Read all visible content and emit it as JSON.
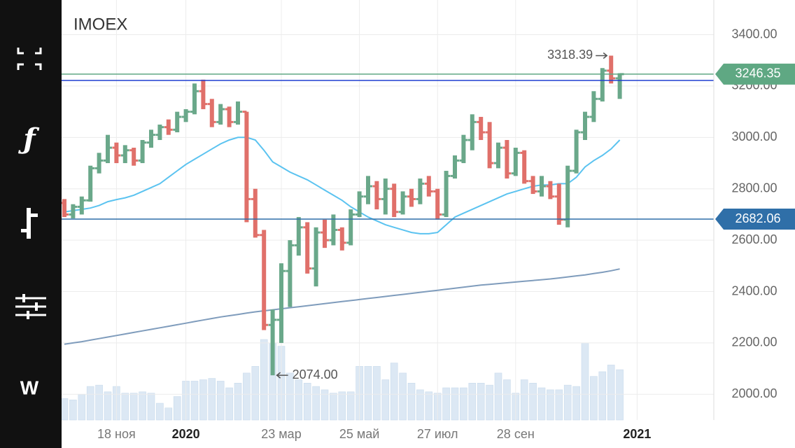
{
  "toolbar": [
    "ƒ",
    "W"
  ],
  "chart_data": {
    "type": "ohlc",
    "title": "IMOEX",
    "categories": [
      null,
      null,
      null,
      null,
      null,
      null,
      "18 ноя",
      null,
      null,
      null,
      null,
      null,
      null,
      null,
      "2020",
      null,
      null,
      null,
      null,
      null,
      null,
      null,
      null,
      null,
      null,
      "23 мар",
      null,
      null,
      null,
      null,
      null,
      null,
      null,
      null,
      "25 май",
      null,
      null,
      null,
      null,
      null,
      null,
      null,
      null,
      "27 июл",
      null,
      null,
      null,
      null,
      null,
      null,
      null,
      null,
      "28 сен",
      null,
      null,
      null,
      null,
      null,
      null,
      null,
      null,
      null,
      null,
      null,
      null,
      null,
      "2021",
      null,
      null,
      null,
      null,
      null,
      null,
      null,
      null
    ],
    "ohlc": [
      [
        2745,
        2760,
        2690,
        2700
      ],
      [
        2700,
        2740,
        2685,
        2730
      ],
      [
        2730,
        2770,
        2700,
        2755
      ],
      [
        2755,
        2890,
        2750,
        2880
      ],
      [
        2880,
        2940,
        2860,
        2910
      ],
      [
        2910,
        3010,
        2900,
        2960
      ],
      [
        2960,
        2980,
        2900,
        2930
      ],
      [
        2930,
        2970,
        2900,
        2950
      ],
      [
        2950,
        2960,
        2890,
        2910
      ],
      [
        2910,
        2990,
        2900,
        2980
      ],
      [
        2980,
        3030,
        2960,
        3010
      ],
      [
        3010,
        3050,
        2990,
        3040
      ],
      [
        3040,
        3070,
        3010,
        3030
      ],
      [
        3030,
        3100,
        3020,
        3080
      ],
      [
        3080,
        3110,
        3060,
        3100
      ],
      [
        3100,
        3210,
        3090,
        3180
      ],
      [
        3180,
        3225,
        3110,
        3130
      ],
      [
        3130,
        3150,
        3040,
        3060
      ],
      [
        3060,
        3130,
        3050,
        3110
      ],
      [
        3110,
        3120,
        3040,
        3060
      ],
      [
        3060,
        3140,
        3050,
        3100
      ],
      [
        3100,
        3100,
        2670,
        2760
      ],
      [
        2760,
        2800,
        2610,
        2620
      ],
      [
        2620,
        2640,
        2250,
        2270
      ],
      [
        2270,
        2330,
        2074,
        2290
      ],
      [
        2290,
        2510,
        2200,
        2480
      ],
      [
        2480,
        2600,
        2340,
        2580
      ],
      [
        2580,
        2690,
        2540,
        2650
      ],
      [
        2650,
        2670,
        2470,
        2490
      ],
      [
        2490,
        2650,
        2420,
        2630
      ],
      [
        2630,
        2680,
        2570,
        2600
      ],
      [
        2600,
        2700,
        2580,
        2640
      ],
      [
        2640,
        2650,
        2560,
        2590
      ],
      [
        2590,
        2720,
        2580,
        2700
      ],
      [
        2700,
        2790,
        2690,
        2770
      ],
      [
        2770,
        2850,
        2740,
        2810
      ],
      [
        2810,
        2830,
        2720,
        2760
      ],
      [
        2760,
        2840,
        2700,
        2800
      ],
      [
        2800,
        2820,
        2690,
        2710
      ],
      [
        2710,
        2790,
        2700,
        2770
      ],
      [
        2770,
        2800,
        2730,
        2760
      ],
      [
        2760,
        2840,
        2740,
        2820
      ],
      [
        2820,
        2850,
        2770,
        2790
      ],
      [
        2790,
        2800,
        2680,
        2700
      ],
      [
        2700,
        2870,
        2690,
        2850
      ],
      [
        2850,
        2930,
        2840,
        2910
      ],
      [
        2910,
        3010,
        2900,
        2990
      ],
      [
        2990,
        3090,
        2950,
        3060
      ],
      [
        3060,
        3080,
        2990,
        3020
      ],
      [
        3020,
        3060,
        2880,
        2900
      ],
      [
        2900,
        2980,
        2880,
        2960
      ],
      [
        2960,
        2990,
        2840,
        2860
      ],
      [
        2860,
        2960,
        2850,
        2940
      ],
      [
        2940,
        2950,
        2820,
        2830
      ],
      [
        2830,
        2850,
        2780,
        2790
      ],
      [
        2790,
        2850,
        2770,
        2810
      ],
      [
        2810,
        2830,
        2760,
        2770
      ],
      [
        2770,
        2820,
        2660,
        2680
      ],
      [
        2680,
        2890,
        2650,
        2870
      ],
      [
        2870,
        3030,
        2860,
        3020
      ],
      [
        3020,
        3100,
        2990,
        3080
      ],
      [
        3080,
        3180,
        3060,
        3150
      ],
      [
        3150,
        3270,
        3140,
        3260
      ],
      [
        3260,
        3318.39,
        3210,
        3230
      ],
      [
        3230,
        3250,
        3150,
        3246.35
      ],
      null,
      null,
      null,
      null,
      null,
      null,
      null,
      null,
      null,
      null
    ],
    "up_color": "#6aa88a",
    "down_color": "#e0706a",
    "lines": [
      {
        "color": "#5bc3f0",
        "values": [
          2710,
          2715,
          2720,
          2725,
          2735,
          2750,
          2758,
          2765,
          2775,
          2790,
          2805,
          2820,
          2845,
          2870,
          2895,
          2915,
          2935,
          2955,
          2975,
          2990,
          3000,
          3000,
          2990,
          2950,
          2905,
          2885,
          2865,
          2850,
          2835,
          2815,
          2795,
          2775,
          2755,
          2730,
          2710,
          2690,
          2675,
          2660,
          2650,
          2640,
          2630,
          2625,
          2625,
          2630,
          2660,
          2690,
          2705,
          2720,
          2735,
          2750,
          2765,
          2780,
          2790,
          2800,
          2810,
          2815,
          2815,
          2820,
          2820,
          2845,
          2885,
          2910,
          2930,
          2955,
          2990,
          null,
          null,
          null,
          null,
          null,
          null,
          null,
          null,
          null,
          null
        ]
      },
      {
        "color": "#7f9cbc",
        "values": [
          2195,
          2200,
          2205,
          2211,
          2217,
          2223,
          2229,
          2235,
          2241,
          2247,
          2253,
          2259,
          2265,
          2271,
          2277,
          2283,
          2289,
          2295,
          2301,
          2306,
          2311,
          2316,
          2321,
          2325,
          2329,
          2333,
          2337,
          2341,
          2345,
          2349,
          2353,
          2357,
          2361,
          2365,
          2369,
          2373,
          2377,
          2381,
          2385,
          2389,
          2393,
          2397,
          2401,
          2405,
          2409,
          2413,
          2417,
          2421,
          2425,
          2428,
          2431,
          2434,
          2437,
          2440,
          2443,
          2446,
          2449,
          2453,
          2457,
          2461,
          2465,
          2470,
          2475,
          2481,
          2488,
          null,
          null,
          null,
          null,
          null,
          null,
          null,
          null,
          null,
          null
        ]
      }
    ],
    "volume": {
      "color": "#dce8f4",
      "values": [
        32,
        30,
        38,
        50,
        52,
        42,
        50,
        40,
        40,
        42,
        40,
        25,
        18,
        35,
        58,
        58,
        60,
        62,
        58,
        48,
        55,
        70,
        80,
        120,
        115,
        110,
        70,
        60,
        55,
        50,
        45,
        40,
        42,
        42,
        80,
        80,
        80,
        60,
        85,
        70,
        55,
        45,
        42,
        40,
        48,
        48,
        48,
        55,
        55,
        52,
        70,
        60,
        40,
        60,
        55,
        48,
        45,
        45,
        52,
        50,
        115,
        65,
        72,
        82,
        75,
        null,
        null,
        null,
        null,
        null,
        null,
        null,
        null,
        null,
        null
      ]
    },
    "levels": [
      {
        "value": 3246.35,
        "color": "#5fa883",
        "tagged": true
      },
      {
        "value": 3222,
        "color": "#1f3fd0",
        "tagged": false
      },
      {
        "value": 2682.06,
        "color": "#2f6fa8",
        "tagged": true
      }
    ],
    "annotations": [
      {
        "value": 3318.39,
        "side": "left"
      },
      {
        "value": 2074,
        "label": "2074.00",
        "side": "right"
      }
    ],
    "ylim": [
      1900,
      3535
    ],
    "yticks": [
      {
        "value": 2000,
        "label": "2000.00"
      },
      {
        "value": 2200,
        "label": "2200.00"
      },
      {
        "value": 2400,
        "label": "2400.00"
      },
      {
        "value": 2600,
        "label": "2600.00"
      },
      {
        "value": 2800,
        "label": "2800.00"
      },
      {
        "value": 3000,
        "label": "3000.00"
      },
      {
        "value": 3200,
        "label": "3200.00"
      },
      {
        "value": 3400,
        "label": "3400.00"
      }
    ],
    "grid": true
  }
}
